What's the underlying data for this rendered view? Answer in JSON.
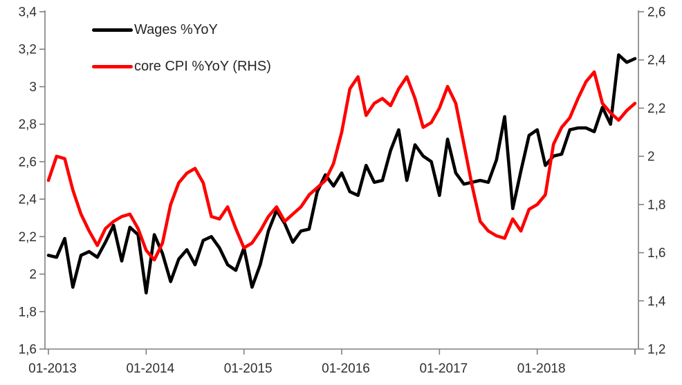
{
  "chart_data": {
    "type": "line",
    "title": "",
    "grid": false,
    "legend_position": "top-left",
    "x": [
      "01-2013",
      "02-2013",
      "03-2013",
      "04-2013",
      "05-2013",
      "06-2013",
      "07-2013",
      "08-2013",
      "09-2013",
      "10-2013",
      "11-2013",
      "12-2013",
      "01-2014",
      "02-2014",
      "03-2014",
      "04-2014",
      "05-2014",
      "06-2014",
      "07-2014",
      "08-2014",
      "09-2014",
      "10-2014",
      "11-2014",
      "12-2014",
      "01-2015",
      "02-2015",
      "03-2015",
      "04-2015",
      "05-2015",
      "06-2015",
      "07-2015",
      "08-2015",
      "09-2015",
      "10-2015",
      "11-2015",
      "12-2015",
      "01-2016",
      "02-2016",
      "03-2016",
      "04-2016",
      "05-2016",
      "06-2016",
      "07-2016",
      "08-2016",
      "09-2016",
      "10-2016",
      "11-2016",
      "12-2016",
      "01-2017",
      "02-2017",
      "03-2017",
      "04-2017",
      "05-2017",
      "06-2017",
      "07-2017",
      "08-2017",
      "09-2017",
      "10-2017",
      "11-2017",
      "12-2017",
      "01-2018",
      "02-2018",
      "03-2018",
      "04-2018",
      "05-2018",
      "06-2018",
      "07-2018",
      "08-2018",
      "09-2018",
      "10-2018",
      "11-2018",
      "12-2018",
      "01-2019"
    ],
    "x_axis": {
      "tick_labels": [
        "01-2013",
        "01-2014",
        "01-2015",
        "01-2016",
        "01-2017",
        "01-2018"
      ],
      "tick_every_months": 12,
      "end_tick": true
    },
    "left_axis": {
      "min": 1.6,
      "max": 3.4,
      "step": 0.2,
      "tick_labels": [
        "3,4",
        "3,2",
        "3",
        "2,8",
        "2,6",
        "2,4",
        "2,2",
        "2",
        "1,8",
        "1,6"
      ]
    },
    "right_axis": {
      "min": 1.2,
      "max": 2.6,
      "step": 0.2,
      "tick_labels": [
        "2,6",
        "2,4",
        "2,2",
        "2",
        "1,8",
        "1,6",
        "1,4",
        "1,2"
      ]
    },
    "series": [
      {
        "name": "Wages %YoY",
        "axis": "left",
        "color": "#000000",
        "values": [
          2.1,
          2.09,
          2.19,
          1.93,
          2.1,
          2.12,
          2.09,
          2.17,
          2.26,
          2.07,
          2.25,
          2.21,
          1.9,
          2.21,
          2.11,
          1.96,
          2.08,
          2.13,
          2.05,
          2.18,
          2.2,
          2.14,
          2.05,
          2.02,
          2.14,
          1.93,
          2.05,
          2.23,
          2.34,
          2.27,
          2.17,
          2.23,
          2.24,
          2.44,
          2.53,
          2.47,
          2.54,
          2.44,
          2.42,
          2.58,
          2.49,
          2.5,
          2.66,
          2.77,
          2.5,
          2.69,
          2.63,
          2.6,
          2.42,
          2.72,
          2.54,
          2.48,
          2.49,
          2.5,
          2.49,
          2.61,
          2.84,
          2.35,
          2.55,
          2.74,
          2.77,
          2.58,
          2.63,
          2.64,
          2.77,
          2.78,
          2.78,
          2.76,
          2.89,
          2.8,
          3.17,
          3.13,
          3.15
        ]
      },
      {
        "name": "core CPI %YoY (RHS)",
        "axis": "right",
        "color": "#fe0000",
        "values": [
          1.9,
          2.0,
          1.99,
          1.86,
          1.76,
          1.69,
          1.63,
          1.7,
          1.73,
          1.75,
          1.76,
          1.7,
          1.61,
          1.57,
          1.64,
          1.8,
          1.89,
          1.93,
          1.95,
          1.89,
          1.75,
          1.74,
          1.79,
          1.7,
          1.62,
          1.64,
          1.69,
          1.75,
          1.79,
          1.73,
          1.76,
          1.79,
          1.84,
          1.87,
          1.9,
          1.97,
          2.1,
          2.28,
          2.33,
          2.17,
          2.22,
          2.24,
          2.21,
          2.28,
          2.33,
          2.24,
          2.12,
          2.14,
          2.2,
          2.29,
          2.22,
          2.05,
          1.88,
          1.73,
          1.69,
          1.67,
          1.66,
          1.74,
          1.69,
          1.78,
          1.8,
          1.84,
          2.05,
          2.12,
          2.16,
          2.24,
          2.31,
          2.35,
          2.22,
          2.18,
          2.15,
          2.19,
          2.22
        ]
      }
    ],
    "colors": {
      "axis_line": "#7f7f7f",
      "tick_label": "#303030",
      "background": "#ffffff"
    }
  }
}
